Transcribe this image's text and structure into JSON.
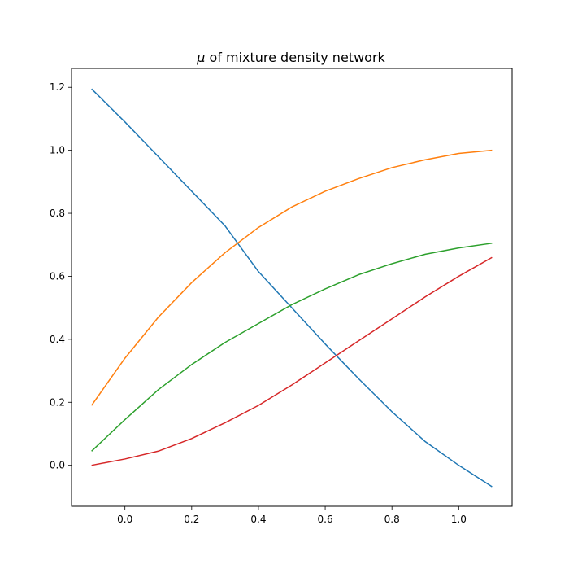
{
  "chart_data": {
    "type": "line",
    "title_symbol": "μ",
    "title_rest": " of mixture density network",
    "xlabel": "",
    "ylabel": "",
    "xlim": [
      -0.16,
      1.16
    ],
    "ylim": [
      -0.13,
      1.26
    ],
    "xticks": [
      0.0,
      0.2,
      0.4,
      0.6,
      0.8,
      1.0
    ],
    "xtick_labels": [
      "0.0",
      "0.2",
      "0.4",
      "0.6",
      "0.8",
      "1.0"
    ],
    "yticks": [
      0.0,
      0.2,
      0.4,
      0.6,
      0.8,
      1.0,
      1.2
    ],
    "ytick_labels": [
      "0.0",
      "0.2",
      "0.4",
      "0.6",
      "0.8",
      "1.0",
      "1.2"
    ],
    "grid": false,
    "legend": "none",
    "x": [
      -0.1,
      0.0,
      0.1,
      0.2,
      0.3,
      0.4,
      0.5,
      0.6,
      0.7,
      0.8,
      0.9,
      1.0,
      1.1
    ],
    "series": [
      {
        "color": "#1f77b4",
        "values": [
          1.195,
          1.09,
          0.98,
          0.87,
          0.76,
          0.615,
          0.5,
          0.385,
          0.275,
          0.17,
          0.075,
          0.0,
          -0.068
        ]
      },
      {
        "color": "#ff7f0e",
        "values": [
          0.19,
          0.34,
          0.47,
          0.58,
          0.675,
          0.755,
          0.82,
          0.87,
          0.91,
          0.945,
          0.97,
          0.99,
          1.0
        ]
      },
      {
        "color": "#2ca02c",
        "values": [
          0.045,
          0.145,
          0.24,
          0.32,
          0.39,
          0.45,
          0.51,
          0.56,
          0.605,
          0.64,
          0.67,
          0.69,
          0.705
        ]
      },
      {
        "color": "#d62728",
        "values": [
          0.0,
          0.02,
          0.045,
          0.085,
          0.135,
          0.19,
          0.255,
          0.325,
          0.395,
          0.465,
          0.535,
          0.6,
          0.66
        ]
      }
    ]
  }
}
